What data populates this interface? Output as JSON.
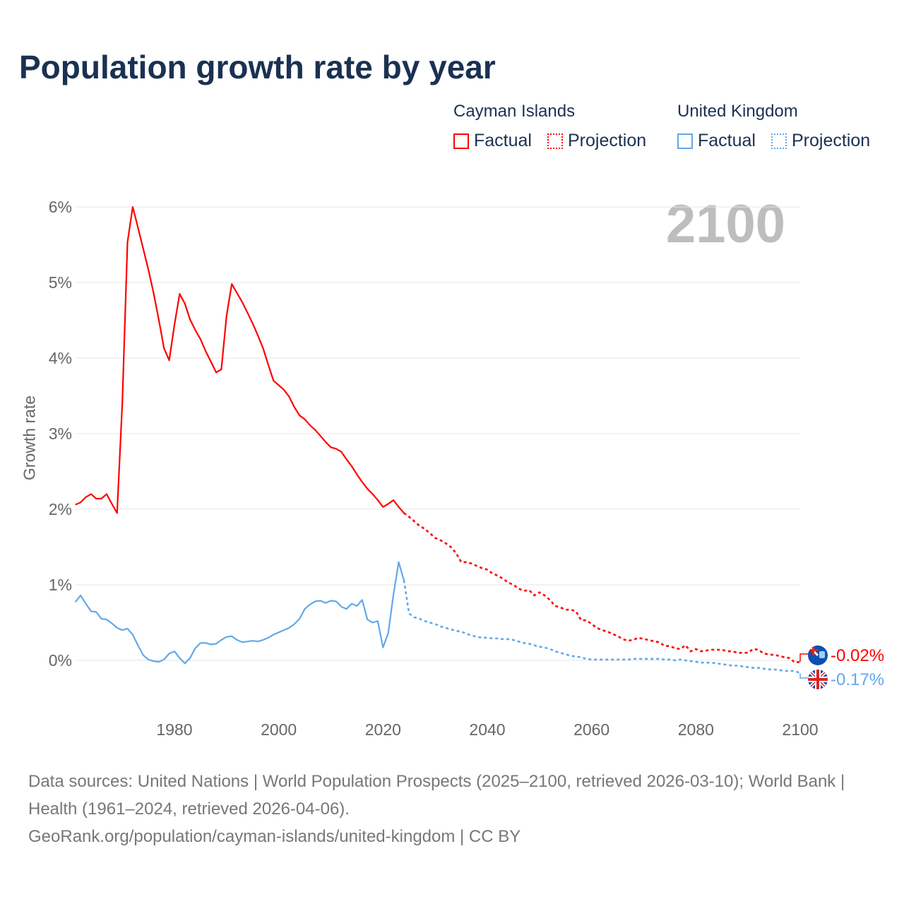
{
  "chart_data": {
    "type": "line",
    "title": "Population growth rate by year",
    "ylabel": "Growth rate",
    "xlabel": "",
    "xlim": [
      1961,
      2100
    ],
    "ylim": [
      -0.6,
      6.2
    ],
    "x_ticks": [
      1980,
      2000,
      2020,
      2040,
      2060,
      2080,
      2100
    ],
    "x_tick_labels": [
      "1980",
      "2000",
      "2020",
      "2040",
      "2060",
      "2080",
      "2100"
    ],
    "y_ticks": [
      0,
      1,
      2,
      3,
      4,
      5,
      6
    ],
    "y_tick_labels": [
      "0%",
      "1%",
      "2%",
      "3%",
      "4%",
      "5%",
      "6%"
    ],
    "grid": true,
    "current_year_label": "2100",
    "legend": {
      "placement": "top-right",
      "groups": [
        {
          "name": "Cayman Islands",
          "factual": "Factual",
          "projection": "Projection"
        },
        {
          "name": "United Kingdom",
          "factual": "Factual",
          "projection": "Projection"
        }
      ]
    },
    "series": [
      {
        "name": "Cayman Islands",
        "color": "#ff0000",
        "end_label": "-0.02%",
        "factual": {
          "x_start": 1961,
          "values": [
            2.06,
            2.09,
            2.16,
            2.2,
            2.14,
            2.14,
            2.2,
            2.07,
            1.95,
            3.41,
            5.53,
            6.0,
            5.73,
            5.45,
            5.17,
            4.86,
            4.51,
            4.13,
            3.97,
            4.44,
            4.85,
            4.72,
            4.51,
            4.37,
            4.25,
            4.09,
            3.95,
            3.81,
            3.85,
            4.56,
            4.98,
            4.86,
            4.74,
            4.6,
            4.46,
            4.3,
            4.13,
            3.91,
            3.7,
            3.64,
            3.58,
            3.49,
            3.35,
            3.24,
            3.19,
            3.11,
            3.05,
            2.97,
            2.89,
            2.82,
            2.8,
            2.76,
            2.66,
            2.57,
            2.46,
            2.36,
            2.27,
            2.2,
            2.12,
            2.03,
            2.07,
            2.12,
            2.03,
            1.95
          ]
        },
        "projection": {
          "x_start": 2025,
          "values": [
            1.9,
            1.84,
            1.78,
            1.74,
            1.68,
            1.62,
            1.59,
            1.55,
            1.5,
            1.42,
            1.3,
            1.3,
            1.28,
            1.25,
            1.22,
            1.2,
            1.15,
            1.12,
            1.08,
            1.03,
            1.0,
            0.95,
            0.92,
            0.93,
            0.86,
            0.9,
            0.86,
            0.8,
            0.72,
            0.7,
            0.67,
            0.67,
            0.65,
            0.53,
            0.53,
            0.48,
            0.43,
            0.4,
            0.38,
            0.35,
            0.32,
            0.28,
            0.26,
            0.27,
            0.3,
            0.28,
            0.27,
            0.25,
            0.24,
            0.19,
            0.19,
            0.16,
            0.15,
            0.2,
            0.12,
            0.15,
            0.12,
            0.13,
            0.14,
            0.14,
            0.14,
            0.12,
            0.12,
            0.1,
            0.1,
            0.1,
            0.15,
            0.14,
            0.09,
            0.08,
            0.07,
            0.06,
            0.04,
            0.03,
            -0.03,
            -0.02
          ]
        }
      },
      {
        "name": "United Kingdom",
        "color": "#62a8ea",
        "end_label": "-0.17%",
        "factual": {
          "x_start": 1961,
          "values": [
            0.77,
            0.86,
            0.75,
            0.65,
            0.64,
            0.55,
            0.54,
            0.49,
            0.43,
            0.4,
            0.42,
            0.34,
            0.2,
            0.07,
            0.01,
            -0.01,
            -0.02,
            0.01,
            0.09,
            0.12,
            0.03,
            -0.04,
            0.03,
            0.16,
            0.23,
            0.23,
            0.21,
            0.22,
            0.27,
            0.31,
            0.32,
            0.27,
            0.24,
            0.25,
            0.26,
            0.25,
            0.27,
            0.3,
            0.34,
            0.37,
            0.4,
            0.43,
            0.48,
            0.55,
            0.68,
            0.74,
            0.78,
            0.79,
            0.76,
            0.79,
            0.78,
            0.71,
            0.68,
            0.75,
            0.72,
            0.8,
            0.54,
            0.5,
            0.52,
            0.17,
            0.36,
            0.87,
            1.3,
            1.06
          ]
        },
        "projection": {
          "x_start": 2025,
          "values": [
            0.62,
            0.57,
            0.55,
            0.52,
            0.5,
            0.48,
            0.45,
            0.43,
            0.41,
            0.39,
            0.38,
            0.35,
            0.33,
            0.31,
            0.3,
            0.3,
            0.29,
            0.29,
            0.28,
            0.28,
            0.27,
            0.25,
            0.23,
            0.22,
            0.2,
            0.18,
            0.17,
            0.15,
            0.12,
            0.1,
            0.08,
            0.06,
            0.05,
            0.04,
            0.02,
            0.01,
            0.01,
            0.01,
            0.01,
            0.01,
            0.01,
            0.01,
            0.01,
            0.02,
            0.02,
            0.02,
            0.02,
            0.02,
            0.02,
            0.01,
            0.01,
            0.0,
            0.01,
            0.0,
            -0.01,
            -0.02,
            -0.03,
            -0.03,
            -0.03,
            -0.04,
            -0.05,
            -0.06,
            -0.07,
            -0.07,
            -0.08,
            -0.09,
            -0.1,
            -0.1,
            -0.11,
            -0.12,
            -0.12,
            -0.13,
            -0.14,
            -0.14,
            -0.14,
            -0.17
          ]
        }
      }
    ]
  },
  "footer": {
    "sources": "Data sources: United Nations | World Population Prospects (2025–2100, retrieved 2026-03-10); World Bank | Health (1961–2024, retrieved 2026-04-06).",
    "credit": "GeoRank.org/population/cayman-islands/united-kingdom | CC BY"
  }
}
